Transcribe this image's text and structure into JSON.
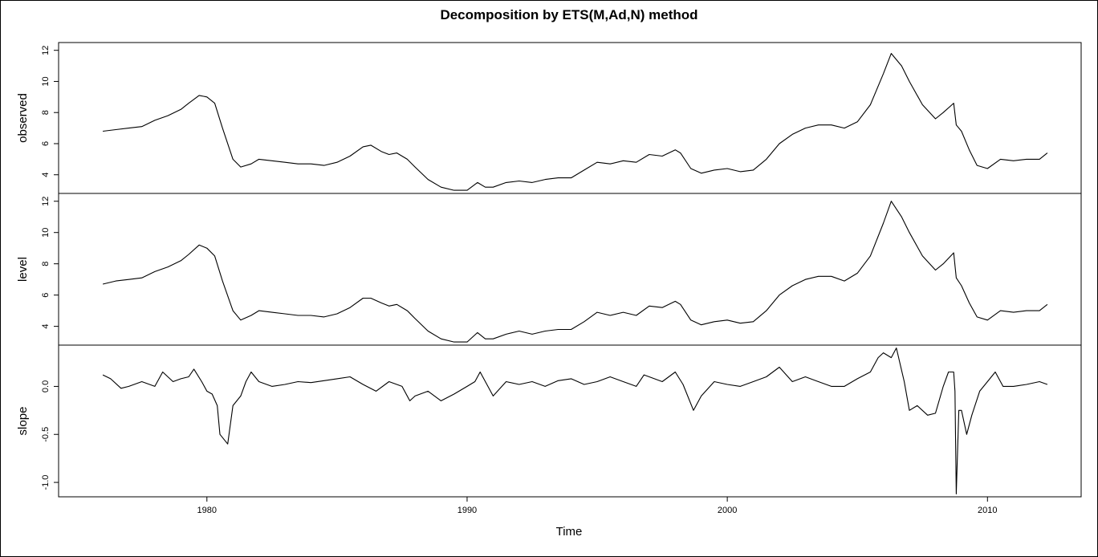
{
  "chart_data": {
    "type": "line",
    "title": "Decomposition by ETS(M,Ad,N) method",
    "xlabel": "Time",
    "xlim": [
      1974.3,
      2013.6
    ],
    "x_ticks": [
      1980,
      1990,
      2000,
      2010
    ],
    "x_tick_labels": [
      "1980",
      "1990",
      "2000",
      "2010"
    ],
    "grid": false,
    "panels": [
      {
        "name": "observed",
        "ylabel": "observed",
        "ylim": [
          2.8,
          12.5
        ],
        "y_ticks": [
          4,
          6,
          8,
          10,
          12
        ],
        "y_tick_labels": [
          "4",
          "6",
          "8",
          "10",
          "12"
        ],
        "x": [
          1976.0,
          1976.5,
          1977.0,
          1977.5,
          1978.0,
          1978.5,
          1979.0,
          1979.3,
          1979.7,
          1980.0,
          1980.3,
          1980.6,
          1981.0,
          1981.3,
          1981.7,
          1982.0,
          1982.5,
          1983.0,
          1983.5,
          1984.0,
          1984.5,
          1985.0,
          1985.5,
          1986.0,
          1986.3,
          1986.7,
          1987.0,
          1987.3,
          1987.7,
          1988.0,
          1988.5,
          1989.0,
          1989.5,
          1990.0,
          1990.4,
          1990.7,
          1991.0,
          1991.5,
          1992.0,
          1992.5,
          1993.0,
          1993.5,
          1994.0,
          1994.5,
          1995.0,
          1995.5,
          1996.0,
          1996.5,
          1997.0,
          1997.5,
          1998.0,
          1998.2,
          1998.6,
          1999.0,
          1999.5,
          2000.0,
          2000.5,
          2001.0,
          2001.5,
          2002.0,
          2002.5,
          2003.0,
          2003.5,
          2004.0,
          2004.5,
          2005.0,
          2005.5,
          2006.0,
          2006.3,
          2006.7,
          2007.0,
          2007.5,
          2008.0,
          2008.3,
          2008.7,
          2008.8,
          2009.0,
          2009.3,
          2009.6,
          2010.0,
          2010.5,
          2011.0,
          2011.5,
          2012.0,
          2012.3
        ],
        "y": [
          6.8,
          6.9,
          7.0,
          7.1,
          7.5,
          7.8,
          8.2,
          8.6,
          9.1,
          9.0,
          8.6,
          7.0,
          5.0,
          4.5,
          4.7,
          5.0,
          4.9,
          4.8,
          4.7,
          4.7,
          4.6,
          4.8,
          5.2,
          5.8,
          5.9,
          5.5,
          5.3,
          5.4,
          5.0,
          4.5,
          3.7,
          3.2,
          3.0,
          3.0,
          3.5,
          3.2,
          3.2,
          3.5,
          3.6,
          3.5,
          3.7,
          3.8,
          3.8,
          4.3,
          4.8,
          4.7,
          4.9,
          4.8,
          5.3,
          5.2,
          5.6,
          5.4,
          4.4,
          4.1,
          4.3,
          4.4,
          4.2,
          4.3,
          5.0,
          6.0,
          6.6,
          7.0,
          7.2,
          7.2,
          7.0,
          7.4,
          8.5,
          10.5,
          11.8,
          11.0,
          10.0,
          8.5,
          7.6,
          8.0,
          8.6,
          7.2,
          6.8,
          5.6,
          4.6,
          4.4,
          5.0,
          4.9,
          5.0,
          5.0,
          5.4
        ]
      },
      {
        "name": "level",
        "ylabel": "level",
        "ylim": [
          2.8,
          12.5
        ],
        "y_ticks": [
          4,
          6,
          8,
          10,
          12
        ],
        "y_tick_labels": [
          "4",
          "6",
          "8",
          "10",
          "12"
        ],
        "x": [
          1976.0,
          1976.5,
          1977.0,
          1977.5,
          1978.0,
          1978.5,
          1979.0,
          1979.3,
          1979.7,
          1980.0,
          1980.3,
          1980.6,
          1981.0,
          1981.3,
          1981.7,
          1982.0,
          1982.5,
          1983.0,
          1983.5,
          1984.0,
          1984.5,
          1985.0,
          1985.5,
          1986.0,
          1986.3,
          1986.7,
          1987.0,
          1987.3,
          1987.7,
          1988.0,
          1988.5,
          1989.0,
          1989.5,
          1990.0,
          1990.4,
          1990.7,
          1991.0,
          1991.5,
          1992.0,
          1992.5,
          1993.0,
          1993.5,
          1994.0,
          1994.5,
          1995.0,
          1995.5,
          1996.0,
          1996.5,
          1997.0,
          1997.5,
          1998.0,
          1998.2,
          1998.6,
          1999.0,
          1999.5,
          2000.0,
          2000.5,
          2001.0,
          2001.5,
          2002.0,
          2002.5,
          2003.0,
          2003.5,
          2004.0,
          2004.5,
          2005.0,
          2005.5,
          2006.0,
          2006.3,
          2006.7,
          2007.0,
          2007.5,
          2008.0,
          2008.3,
          2008.7,
          2008.8,
          2009.0,
          2009.3,
          2009.6,
          2010.0,
          2010.5,
          2011.0,
          2011.5,
          2012.0,
          2012.3
        ],
        "y": [
          6.7,
          6.9,
          7.0,
          7.1,
          7.5,
          7.8,
          8.2,
          8.6,
          9.2,
          9.0,
          8.5,
          6.9,
          5.0,
          4.4,
          4.7,
          5.0,
          4.9,
          4.8,
          4.7,
          4.7,
          4.6,
          4.8,
          5.2,
          5.8,
          5.8,
          5.5,
          5.3,
          5.4,
          5.0,
          4.5,
          3.7,
          3.2,
          3.0,
          3.0,
          3.6,
          3.2,
          3.2,
          3.5,
          3.7,
          3.5,
          3.7,
          3.8,
          3.8,
          4.3,
          4.9,
          4.7,
          4.9,
          4.7,
          5.3,
          5.2,
          5.6,
          5.4,
          4.4,
          4.1,
          4.3,
          4.4,
          4.2,
          4.3,
          5.0,
          6.0,
          6.6,
          7.0,
          7.2,
          7.2,
          6.9,
          7.4,
          8.5,
          10.6,
          12.0,
          11.0,
          10.0,
          8.5,
          7.6,
          8.0,
          8.7,
          7.1,
          6.6,
          5.5,
          4.6,
          4.4,
          5.0,
          4.9,
          5.0,
          5.0,
          5.4
        ]
      },
      {
        "name": "slope",
        "ylabel": "slope",
        "ylim": [
          -1.15,
          0.43
        ],
        "y_ticks": [
          -1.0,
          -0.5,
          0.0
        ],
        "y_tick_labels": [
          "-1.0",
          "-0.5",
          "0.0"
        ],
        "x": [
          1976.0,
          1976.3,
          1976.7,
          1977.0,
          1977.5,
          1978.0,
          1978.3,
          1978.7,
          1979.0,
          1979.3,
          1979.5,
          1979.8,
          1980.0,
          1980.2,
          1980.4,
          1980.5,
          1980.8,
          1981.0,
          1981.3,
          1981.5,
          1981.7,
          1982.0,
          1982.5,
          1983.0,
          1983.5,
          1984.0,
          1984.5,
          1985.0,
          1985.5,
          1986.0,
          1986.5,
          1987.0,
          1987.3,
          1987.5,
          1987.8,
          1988.0,
          1988.5,
          1989.0,
          1989.5,
          1990.0,
          1990.3,
          1990.5,
          1990.8,
          1991.0,
          1991.5,
          1992.0,
          1992.5,
          1993.0,
          1993.5,
          1994.0,
          1994.5,
          1995.0,
          1995.5,
          1996.0,
          1996.5,
          1996.8,
          1997.0,
          1997.5,
          1998.0,
          1998.3,
          1998.7,
          1999.0,
          1999.5,
          2000.0,
          2000.5,
          2001.0,
          2001.5,
          2002.0,
          2002.5,
          2003.0,
          2003.5,
          2004.0,
          2004.5,
          2005.0,
          2005.5,
          2005.8,
          2006.0,
          2006.3,
          2006.5,
          2006.8,
          2007.0,
          2007.3,
          2007.7,
          2008.0,
          2008.3,
          2008.5,
          2008.7,
          2008.75,
          2008.8,
          2008.9,
          2009.0,
          2009.2,
          2009.4,
          2009.7,
          2010.0,
          2010.3,
          2010.6,
          2011.0,
          2011.5,
          2012.0,
          2012.3
        ],
        "y": [
          0.12,
          0.08,
          -0.02,
          0.0,
          0.05,
          0.0,
          0.15,
          0.05,
          0.08,
          0.1,
          0.18,
          0.05,
          -0.05,
          -0.08,
          -0.2,
          -0.5,
          -0.6,
          -0.2,
          -0.1,
          0.05,
          0.15,
          0.05,
          0.0,
          0.02,
          0.05,
          0.04,
          0.06,
          0.08,
          0.1,
          0.02,
          -0.05,
          0.05,
          0.02,
          0.0,
          -0.15,
          -0.1,
          -0.05,
          -0.15,
          -0.08,
          0.0,
          0.05,
          0.15,
          0.0,
          -0.1,
          0.05,
          0.02,
          0.05,
          0.0,
          0.06,
          0.08,
          0.02,
          0.05,
          0.1,
          0.05,
          0.0,
          0.12,
          0.1,
          0.05,
          0.15,
          0.02,
          -0.25,
          -0.1,
          0.05,
          0.02,
          0.0,
          0.05,
          0.1,
          0.2,
          0.05,
          0.1,
          0.05,
          0.0,
          0.0,
          0.08,
          0.15,
          0.3,
          0.35,
          0.3,
          0.4,
          0.05,
          -0.25,
          -0.2,
          -0.3,
          -0.28,
          0.0,
          0.15,
          0.15,
          -0.05,
          -1.12,
          -0.25,
          -0.25,
          -0.5,
          -0.3,
          -0.05,
          0.05,
          0.15,
          0.0,
          0.0,
          0.02,
          0.05,
          0.02
        ]
      }
    ]
  }
}
